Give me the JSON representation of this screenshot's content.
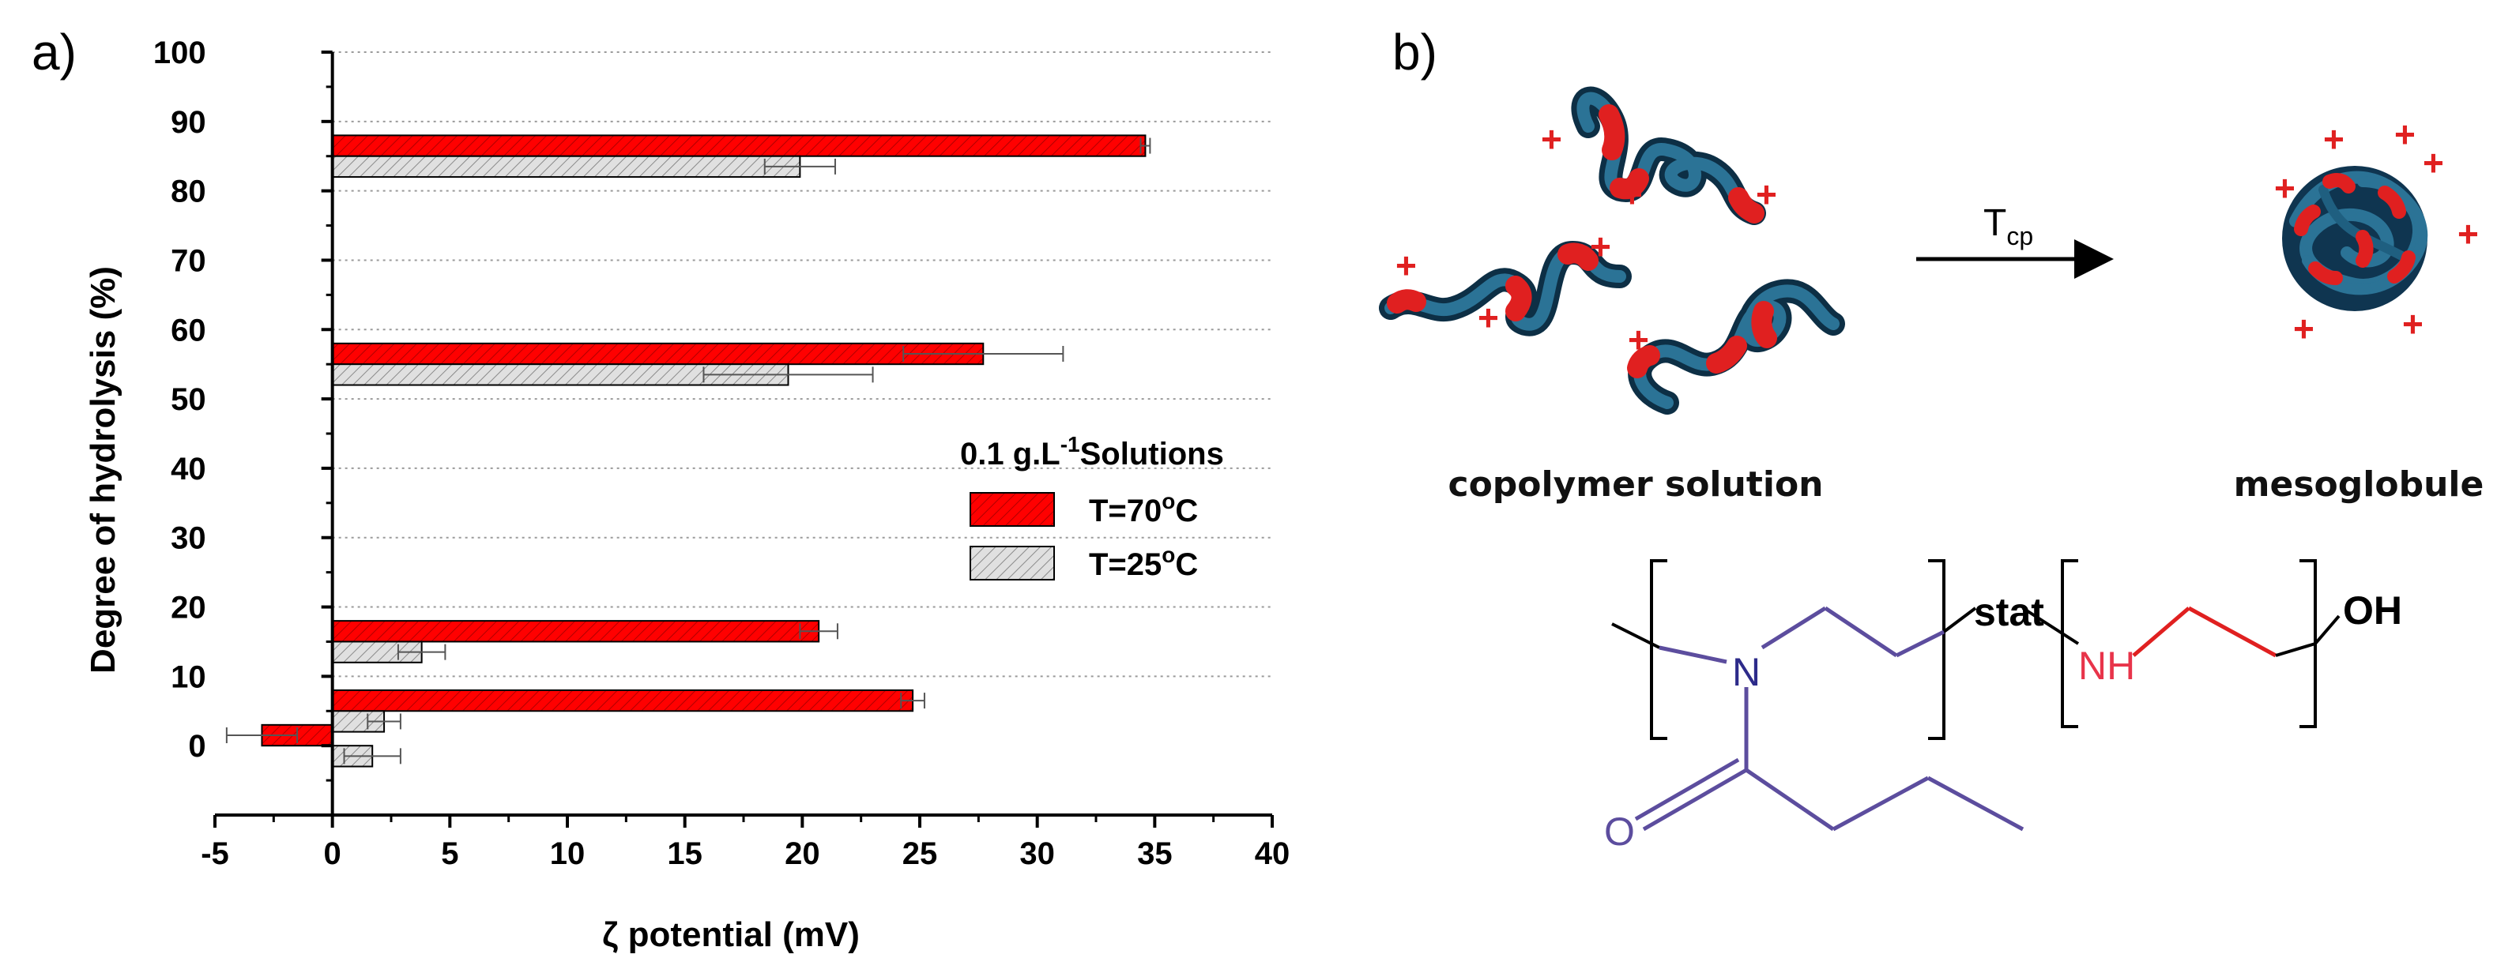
{
  "panels": {
    "a": "a)",
    "b": "b)"
  },
  "chart_data": {
    "type": "bar",
    "orientation": "horizontal",
    "xlabel": "ζ potential (mV)",
    "ylabel": "Degree of hydrolysis (%)",
    "xlim": [
      -5,
      40
    ],
    "ylim": [
      -10,
      100
    ],
    "x_ticks": [
      "-5",
      "0",
      "5",
      "10",
      "15",
      "20",
      "25",
      "30",
      "35",
      "40"
    ],
    "y_ticks": [
      "0",
      "10",
      "20",
      "30",
      "40",
      "50",
      "60",
      "70",
      "80",
      "90",
      "100"
    ],
    "grid": "horizontal dotted",
    "legend_title_pre": "0.1 g.L",
    "legend_title_sup": "-1",
    "legend_title_post": "Solutions",
    "legend_position": "right-middle",
    "series": [
      {
        "name": "T=70°C",
        "label_pre": "T=70",
        "label_sup": "o",
        "label_post": "C",
        "color": "#ff0000",
        "categories": [
          0,
          5,
          15,
          55,
          85
        ],
        "values": [
          -3.0,
          24.7,
          20.7,
          27.7,
          34.6
        ],
        "errors": [
          1.5,
          0.5,
          0.8,
          3.4,
          0.2
        ]
      },
      {
        "name": "T=25°C",
        "label_pre": "T=25",
        "label_sup": "o",
        "label_post": "C",
        "color": "#d4d4d4",
        "categories": [
          0,
          5,
          15,
          55,
          85
        ],
        "values": [
          1.7,
          2.2,
          3.8,
          19.4,
          19.9
        ],
        "errors": [
          1.2,
          0.7,
          1.0,
          3.6,
          1.5
        ]
      }
    ]
  },
  "scheme": {
    "left_caption": "copolymer solution",
    "right_caption": "mesoglobule",
    "arrow_label_main": "T",
    "arrow_label_sub": "cp",
    "charge_symbol": "+"
  },
  "structure": {
    "n_atom": "N",
    "nh_atom": "NH",
    "o_atom": "O",
    "oh_group": "OH",
    "stat_label": "stat"
  },
  "colors": {
    "chain_blue": "#1e5a7a",
    "segment_red": "#e02020",
    "bond_purple": "#5c4d9e",
    "nh_red": "#e8344a"
  }
}
